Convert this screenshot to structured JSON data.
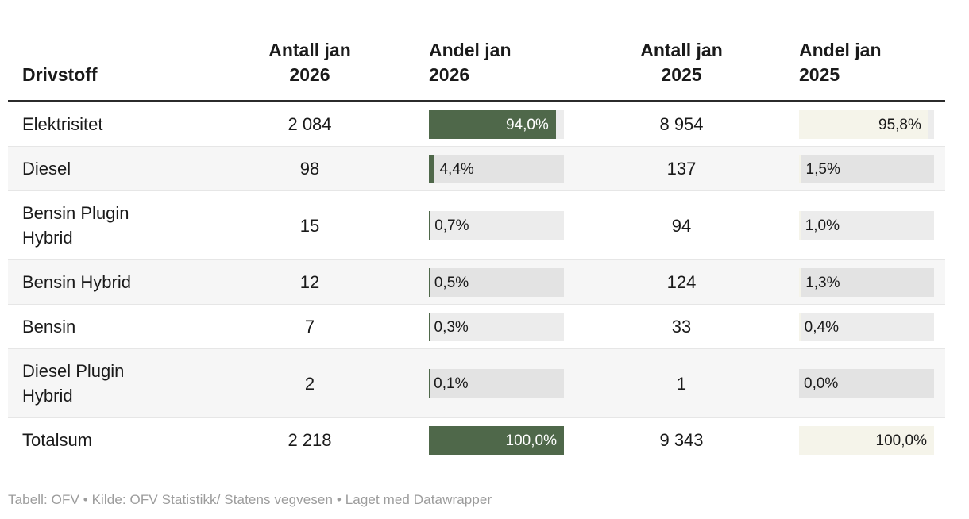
{
  "colors": {
    "accent_green": "#4f684a",
    "accent_cream": "#f5f4ea",
    "row_alt_background": "#f6f6f6",
    "header_rule": "#2b2b2b",
    "row_border": "#e6e6e6",
    "text": "#1a1a1a",
    "muted_text": "#9c9c9c"
  },
  "chart_data": {
    "type": "table",
    "title": "",
    "columns": [
      {
        "id": "fuel",
        "label": "Drivstoff",
        "align": "left"
      },
      {
        "id": "count_jan_2026",
        "label": "Antall jan\n2026",
        "align": "center"
      },
      {
        "id": "share_jan_2026",
        "label": "Andel jan\n2026",
        "align": "left",
        "bar_color": "#4f684a"
      },
      {
        "id": "count_jan_2025",
        "label": "Antall jan\n2025",
        "align": "center"
      },
      {
        "id": "share_jan_2025",
        "label": "Andel jan\n2025",
        "align": "left",
        "bar_color": "#f5f4ea"
      }
    ],
    "rows": [
      {
        "label": "Elektrisitet",
        "count_2026": "2 084",
        "share_2026": "94,0%",
        "share_2026_pct": 94.0,
        "count_2025": "8 954",
        "share_2025": "95,8%",
        "share_2025_pct": 95.8,
        "is_total": false
      },
      {
        "label": "Diesel",
        "count_2026": "98",
        "share_2026": "4,4%",
        "share_2026_pct": 4.4,
        "count_2025": "137",
        "share_2025": "1,5%",
        "share_2025_pct": 1.5,
        "is_total": false
      },
      {
        "label": "Bensin Plugin Hybrid",
        "count_2026": "15",
        "share_2026": "0,7%",
        "share_2026_pct": 0.7,
        "count_2025": "94",
        "share_2025": "1,0%",
        "share_2025_pct": 1.0,
        "is_total": false
      },
      {
        "label": "Bensin Hybrid",
        "count_2026": "12",
        "share_2026": "0,5%",
        "share_2026_pct": 0.5,
        "count_2025": "124",
        "share_2025": "1,3%",
        "share_2025_pct": 1.3,
        "is_total": false
      },
      {
        "label": "Bensin",
        "count_2026": "7",
        "share_2026": "0,3%",
        "share_2026_pct": 0.3,
        "count_2025": "33",
        "share_2025": "0,4%",
        "share_2025_pct": 0.4,
        "is_total": false
      },
      {
        "label": "Diesel Plugin Hybrid",
        "count_2026": "2",
        "share_2026": "0,1%",
        "share_2026_pct": 0.1,
        "count_2025": "1",
        "share_2025": "0,0%",
        "share_2025_pct": 0.0,
        "is_total": false
      },
      {
        "label": "Totalsum",
        "count_2026": "2 218",
        "share_2026": "100,0%",
        "share_2026_pct": 100.0,
        "count_2025": "9 343",
        "share_2025": "100,0%",
        "share_2025_pct": 100.0,
        "is_total": true
      }
    ],
    "footer": "Tabell: OFV • Kilde: OFV Statistikk/ Statens vegvesen • Laget med Datawrapper"
  }
}
